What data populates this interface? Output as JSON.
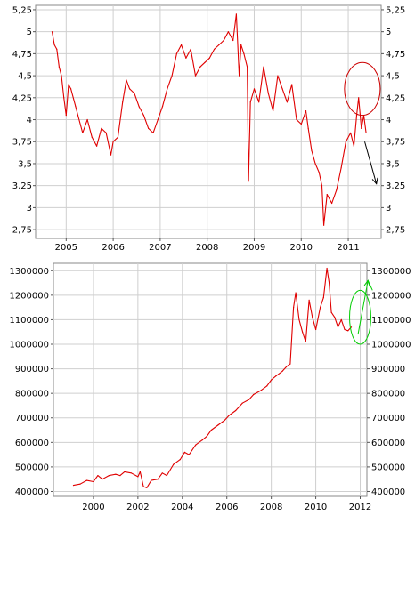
{
  "chart_data": [
    {
      "type": "line",
      "title": "",
      "xlabel": "",
      "ylabel": "",
      "x_ticks": [
        "2005",
        "2006",
        "2007",
        "2008",
        "2009",
        "2010",
        "2011"
      ],
      "y_ticks": [
        "5,25",
        "5",
        "4,75",
        "4,5",
        "4,25",
        "4",
        "3,75",
        "3,5",
        "3,25",
        "3",
        "2,75"
      ],
      "xlim": [
        2004.35,
        2011.7
      ],
      "ylim": [
        2.65,
        5.3
      ],
      "grid": true,
      "line_color": "#e00000",
      "series": [
        {
          "points": [
            [
              2004.7,
              5.0
            ],
            [
              2004.75,
              4.85
            ],
            [
              2004.8,
              4.8
            ],
            [
              2004.85,
              4.6
            ],
            [
              2004.9,
              4.5
            ],
            [
              2004.95,
              4.25
            ],
            [
              2005.0,
              4.05
            ],
            [
              2005.05,
              4.4
            ],
            [
              2005.1,
              4.35
            ],
            [
              2005.2,
              4.15
            ],
            [
              2005.25,
              4.05
            ],
            [
              2005.35,
              3.85
            ],
            [
              2005.45,
              4.0
            ],
            [
              2005.55,
              3.8
            ],
            [
              2005.65,
              3.7
            ],
            [
              2005.75,
              3.9
            ],
            [
              2005.85,
              3.85
            ],
            [
              2005.95,
              3.6
            ],
            [
              2006.0,
              3.75
            ],
            [
              2006.1,
              3.8
            ],
            [
              2006.2,
              4.2
            ],
            [
              2006.28,
              4.45
            ],
            [
              2006.35,
              4.35
            ],
            [
              2006.45,
              4.3
            ],
            [
              2006.55,
              4.15
            ],
            [
              2006.65,
              4.05
            ],
            [
              2006.75,
              3.9
            ],
            [
              2006.85,
              3.85
            ],
            [
              2006.95,
              4.0
            ],
            [
              2007.05,
              4.15
            ],
            [
              2007.15,
              4.35
            ],
            [
              2007.25,
              4.5
            ],
            [
              2007.35,
              4.75
            ],
            [
              2007.45,
              4.85
            ],
            [
              2007.55,
              4.7
            ],
            [
              2007.65,
              4.8
            ],
            [
              2007.75,
              4.5
            ],
            [
              2007.85,
              4.6
            ],
            [
              2007.95,
              4.65
            ],
            [
              2008.05,
              4.7
            ],
            [
              2008.15,
              4.8
            ],
            [
              2008.25,
              4.85
            ],
            [
              2008.35,
              4.9
            ],
            [
              2008.45,
              5.0
            ],
            [
              2008.55,
              4.9
            ],
            [
              2008.62,
              5.2
            ],
            [
              2008.68,
              4.5
            ],
            [
              2008.72,
              4.85
            ],
            [
              2008.78,
              4.75
            ],
            [
              2008.85,
              4.6
            ],
            [
              2008.88,
              3.3
            ],
            [
              2008.92,
              4.2
            ],
            [
              2009.0,
              4.35
            ],
            [
              2009.1,
              4.2
            ],
            [
              2009.2,
              4.6
            ],
            [
              2009.3,
              4.3
            ],
            [
              2009.4,
              4.1
            ],
            [
              2009.5,
              4.5
            ],
            [
              2009.6,
              4.35
            ],
            [
              2009.7,
              4.2
            ],
            [
              2009.8,
              4.4
            ],
            [
              2009.9,
              4.0
            ],
            [
              2010.0,
              3.95
            ],
            [
              2010.1,
              4.1
            ],
            [
              2010.15,
              3.9
            ],
            [
              2010.22,
              3.65
            ],
            [
              2010.3,
              3.5
            ],
            [
              2010.38,
              3.4
            ],
            [
              2010.44,
              3.25
            ],
            [
              2010.48,
              2.8
            ],
            [
              2010.55,
              3.15
            ],
            [
              2010.65,
              3.05
            ],
            [
              2010.75,
              3.2
            ],
            [
              2010.85,
              3.45
            ],
            [
              2010.95,
              3.75
            ],
            [
              2011.05,
              3.85
            ],
            [
              2011.12,
              3.7
            ],
            [
              2011.18,
              4.05
            ],
            [
              2011.22,
              4.25
            ],
            [
              2011.28,
              3.9
            ],
            [
              2011.33,
              4.05
            ],
            [
              2011.38,
              3.85
            ]
          ]
        }
      ],
      "annotations": [
        {
          "shape": "ellipse",
          "color": "#cc0000",
          "cx": 2011.3,
          "cy": 4.35,
          "rx_years": 0.38,
          "ry_value": 0.3
        },
        {
          "shape": "arrow",
          "color": "#000000",
          "from": [
            2011.35,
            3.75
          ],
          "to": [
            2011.6,
            3.27
          ]
        }
      ]
    },
    {
      "type": "line",
      "title": "",
      "xlabel": "",
      "ylabel": "",
      "x_ticks": [
        "2000",
        "2002",
        "2004",
        "2006",
        "2008",
        "2010",
        "2012"
      ],
      "y_ticks": [
        "1300000",
        "1200000",
        "1100000",
        "1000000",
        "900000",
        "800000",
        "700000",
        "600000",
        "500000",
        "400000"
      ],
      "xlim": [
        1998.2,
        2012.3
      ],
      "ylim": [
        380000,
        1330000
      ],
      "grid": true,
      "line_color": "#e00000",
      "series": [
        {
          "points": [
            [
              1999.1,
              425000
            ],
            [
              1999.4,
              430000
            ],
            [
              1999.7,
              445000
            ],
            [
              2000.0,
              440000
            ],
            [
              2000.2,
              465000
            ],
            [
              2000.4,
              450000
            ],
            [
              2000.7,
              465000
            ],
            [
              2001.0,
              470000
            ],
            [
              2001.2,
              465000
            ],
            [
              2001.4,
              480000
            ],
            [
              2001.7,
              475000
            ],
            [
              2002.0,
              460000
            ],
            [
              2002.1,
              480000
            ],
            [
              2002.25,
              420000
            ],
            [
              2002.4,
              415000
            ],
            [
              2002.6,
              445000
            ],
            [
              2002.9,
              450000
            ],
            [
              2003.1,
              475000
            ],
            [
              2003.3,
              465000
            ],
            [
              2003.6,
              510000
            ],
            [
              2003.9,
              530000
            ],
            [
              2004.1,
              560000
            ],
            [
              2004.3,
              550000
            ],
            [
              2004.6,
              590000
            ],
            [
              2004.9,
              610000
            ],
            [
              2005.1,
              625000
            ],
            [
              2005.3,
              650000
            ],
            [
              2005.6,
              670000
            ],
            [
              2005.9,
              690000
            ],
            [
              2006.1,
              710000
            ],
            [
              2006.4,
              730000
            ],
            [
              2006.7,
              760000
            ],
            [
              2007.0,
              775000
            ],
            [
              2007.2,
              795000
            ],
            [
              2007.5,
              810000
            ],
            [
              2007.8,
              830000
            ],
            [
              2008.0,
              855000
            ],
            [
              2008.2,
              870000
            ],
            [
              2008.5,
              890000
            ],
            [
              2008.7,
              910000
            ],
            [
              2008.85,
              920000
            ],
            [
              2009.0,
              1150000
            ],
            [
              2009.1,
              1210000
            ],
            [
              2009.25,
              1100000
            ],
            [
              2009.4,
              1050000
            ],
            [
              2009.55,
              1010000
            ],
            [
              2009.7,
              1180000
            ],
            [
              2009.85,
              1110000
            ],
            [
              2010.0,
              1060000
            ],
            [
              2010.2,
              1150000
            ],
            [
              2010.35,
              1190000
            ],
            [
              2010.5,
              1310000
            ],
            [
              2010.6,
              1250000
            ],
            [
              2010.7,
              1130000
            ],
            [
              2010.85,
              1110000
            ],
            [
              2011.0,
              1070000
            ],
            [
              2011.15,
              1100000
            ],
            [
              2011.3,
              1060000
            ],
            [
              2011.45,
              1055000
            ],
            [
              2011.6,
              1070000
            ]
          ]
        }
      ],
      "annotations": [
        {
          "shape": "ellipse",
          "color": "#00cc00",
          "cx": 2012.0,
          "cy": 1110000,
          "rx_years": 0.48,
          "ry_value": 110000
        },
        {
          "shape": "arrow",
          "color": "#00cc00",
          "from": [
            2011.9,
            1040000
          ],
          "to": [
            2012.35,
            1260000
          ]
        },
        {
          "shape": "line",
          "color": "#00cc00",
          "from": [
            2012.35,
            1260000
          ],
          "to": [
            2012.55,
            1220000
          ]
        }
      ]
    }
  ]
}
